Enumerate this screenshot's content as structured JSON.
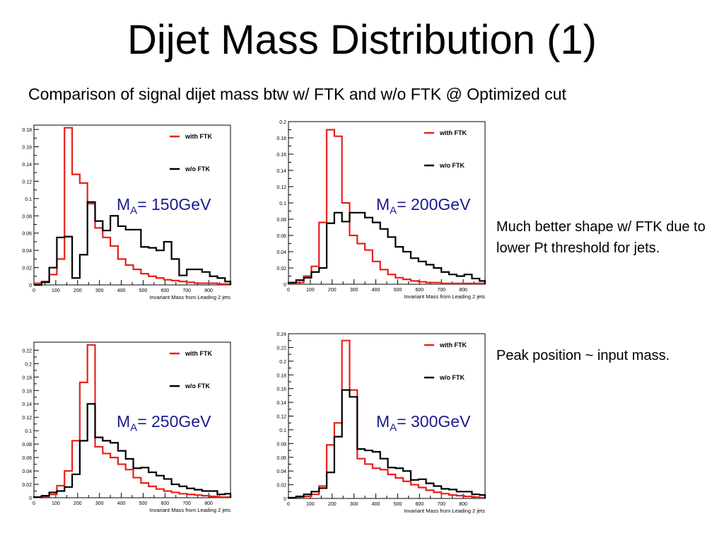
{
  "title": "Dijet Mass Distribution (1)",
  "subtitle": "Comparison of signal dijet mass btw w/ FTK and w/o FTK @ Optimized cut",
  "notes": [
    "Much better shape w/ FTK due to lower Pt threshold for jets.",
    "Peak position ~ input mass."
  ],
  "colors": {
    "with_ftk": "#e8201c",
    "without_ftk": "#000000",
    "label": "#1a1a8e"
  },
  "chart_data": [
    {
      "type": "line",
      "label": {
        "main": "M",
        "sub": "A",
        "rest": "= 150GeV"
      },
      "xlabel": "Invariant Mass from Leading 2 jets",
      "xlim": [
        0,
        900
      ],
      "ylim": [
        0,
        0.185
      ],
      "xticks": [
        0,
        100,
        200,
        300,
        400,
        500,
        600,
        700,
        800
      ],
      "yticks": [
        0,
        0.02,
        0.04,
        0.06,
        0.08,
        0.1,
        0.12,
        0.14,
        0.16,
        0.18
      ],
      "ytick_labels": [
        "0",
        "0.02",
        "0.04",
        "0.06",
        "0.08",
        "0.1",
        "0.12",
        "0.14",
        "0.16",
        "0.18"
      ],
      "bin_edges": [
        0,
        35,
        70,
        105,
        140,
        175,
        210,
        245,
        280,
        315,
        350,
        385,
        420,
        455,
        490,
        525,
        560,
        595,
        630,
        665,
        700,
        735,
        770,
        805,
        840,
        875,
        900
      ],
      "series": [
        {
          "name": "with FTK",
          "values": [
            0.002,
            0.004,
            0.012,
            0.03,
            0.182,
            0.128,
            0.118,
            0.094,
            0.066,
            0.055,
            0.045,
            0.03,
            0.023,
            0.018,
            0.013,
            0.01,
            0.008,
            0.006,
            0.005,
            0.004,
            0.003,
            0.002,
            0.002,
            0.002,
            0.001,
            0.001
          ]
        },
        {
          "name": "w/o FTK",
          "values": [
            0.0,
            0.003,
            0.02,
            0.055,
            0.056,
            0.008,
            0.035,
            0.096,
            0.074,
            0.063,
            0.08,
            0.068,
            0.064,
            0.064,
            0.044,
            0.043,
            0.04,
            0.05,
            0.03,
            0.011,
            0.018,
            0.018,
            0.015,
            0.01,
            0.008,
            0.004
          ]
        }
      ]
    },
    {
      "type": "line",
      "label": {
        "main": "M",
        "sub": "A",
        "rest": "= 200GeV"
      },
      "xlabel": "Invariant Mass from Leading 2 jets",
      "xlim": [
        0,
        900
      ],
      "ylim": [
        0,
        0.2
      ],
      "xticks": [
        0,
        100,
        200,
        300,
        400,
        500,
        600,
        700,
        800
      ],
      "yticks": [
        0,
        0.02,
        0.04,
        0.06,
        0.08,
        0.1,
        0.12,
        0.14,
        0.16,
        0.18,
        0.2
      ],
      "ytick_labels": [
        "0",
        "0.02",
        "0.04",
        "0.06",
        "0.08",
        "0.1",
        "0.12",
        "0.14",
        "0.16",
        "0.18",
        "0.2"
      ],
      "bin_edges": [
        0,
        35,
        70,
        105,
        140,
        175,
        210,
        245,
        280,
        315,
        350,
        385,
        420,
        455,
        490,
        525,
        560,
        595,
        630,
        665,
        700,
        735,
        770,
        805,
        840,
        875,
        900
      ],
      "series": [
        {
          "name": "with FTK",
          "values": [
            0.001,
            0.002,
            0.01,
            0.022,
            0.076,
            0.19,
            0.182,
            0.1,
            0.06,
            0.05,
            0.042,
            0.028,
            0.018,
            0.012,
            0.008,
            0.006,
            0.004,
            0.003,
            0.002,
            0.002,
            0.001,
            0.001,
            0.001,
            0.001,
            0.001,
            0.001
          ]
        },
        {
          "name": "w/o FTK",
          "values": [
            0.002,
            0.005,
            0.008,
            0.015,
            0.02,
            0.075,
            0.088,
            0.077,
            0.088,
            0.088,
            0.082,
            0.076,
            0.068,
            0.058,
            0.046,
            0.04,
            0.032,
            0.028,
            0.024,
            0.02,
            0.015,
            0.012,
            0.01,
            0.012,
            0.007,
            0.004
          ]
        }
      ]
    },
    {
      "type": "line",
      "label": {
        "main": "M",
        "sub": "A",
        "rest": "= 250GeV"
      },
      "xlabel": "Invariant Mass from Leading 2 jets",
      "xlim": [
        0,
        900
      ],
      "ylim": [
        0,
        0.232
      ],
      "xticks": [
        0,
        100,
        200,
        300,
        400,
        500,
        600,
        700,
        800
      ],
      "yticks": [
        0,
        0.02,
        0.04,
        0.06,
        0.08,
        0.1,
        0.12,
        0.14,
        0.16,
        0.18,
        0.2,
        0.22
      ],
      "ytick_labels": [
        "0",
        "0.02",
        "0.04",
        "0.06",
        "0.08",
        "0.1",
        "0.12",
        "0.14",
        "0.16",
        "0.18",
        "0.2",
        "0.22"
      ],
      "bin_edges": [
        0,
        35,
        70,
        105,
        140,
        175,
        210,
        245,
        280,
        315,
        350,
        385,
        420,
        455,
        490,
        525,
        560,
        595,
        630,
        665,
        700,
        735,
        770,
        805,
        840,
        875,
        900
      ],
      "series": [
        {
          "name": "with FTK",
          "values": [
            0.001,
            0.002,
            0.005,
            0.018,
            0.04,
            0.085,
            0.172,
            0.228,
            0.076,
            0.066,
            0.06,
            0.05,
            0.042,
            0.03,
            0.022,
            0.017,
            0.013,
            0.01,
            0.008,
            0.006,
            0.005,
            0.004,
            0.003,
            0.002,
            0.001,
            0.001
          ]
        },
        {
          "name": "w/o FTK",
          "values": [
            0.001,
            0.003,
            0.008,
            0.01,
            0.016,
            0.035,
            0.085,
            0.14,
            0.09,
            0.085,
            0.082,
            0.07,
            0.058,
            0.044,
            0.045,
            0.038,
            0.033,
            0.028,
            0.02,
            0.017,
            0.014,
            0.012,
            0.01,
            0.01,
            0.005,
            0.006
          ]
        }
      ]
    },
    {
      "type": "line",
      "label": {
        "main": "M",
        "sub": "A",
        "rest": "= 300GeV"
      },
      "xlabel": "Invariant Mass from Leading 2 jets",
      "xlim": [
        0,
        900
      ],
      "ylim": [
        0,
        0.24
      ],
      "xticks": [
        0,
        100,
        200,
        300,
        400,
        500,
        600,
        700,
        800
      ],
      "yticks": [
        0,
        0.02,
        0.04,
        0.06,
        0.08,
        0.1,
        0.12,
        0.14,
        0.16,
        0.18,
        0.2,
        0.22,
        0.24
      ],
      "ytick_labels": [
        "0",
        "0.02",
        "0.04",
        "0.06",
        "0.08",
        "0.1",
        "0.12",
        "0.14",
        "0.16",
        "0.18",
        "0.2",
        "0.22",
        "0.24"
      ],
      "bin_edges": [
        0,
        35,
        70,
        105,
        140,
        175,
        210,
        245,
        280,
        315,
        350,
        385,
        420,
        455,
        490,
        525,
        560,
        595,
        630,
        665,
        700,
        735,
        770,
        805,
        840,
        875,
        900
      ],
      "series": [
        {
          "name": "with FTK",
          "values": [
            0.001,
            0.002,
            0.003,
            0.006,
            0.018,
            0.078,
            0.11,
            0.23,
            0.158,
            0.058,
            0.05,
            0.044,
            0.042,
            0.035,
            0.03,
            0.025,
            0.02,
            0.016,
            0.012,
            0.009,
            0.007,
            0.005,
            0.004,
            0.003,
            0.002,
            0.001
          ]
        },
        {
          "name": "w/o FTK",
          "values": [
            0.001,
            0.003,
            0.006,
            0.01,
            0.015,
            0.038,
            0.09,
            0.158,
            0.148,
            0.072,
            0.07,
            0.068,
            0.058,
            0.045,
            0.044,
            0.04,
            0.027,
            0.028,
            0.022,
            0.018,
            0.014,
            0.013,
            0.01,
            0.01,
            0.006,
            0.005
          ]
        }
      ]
    }
  ]
}
